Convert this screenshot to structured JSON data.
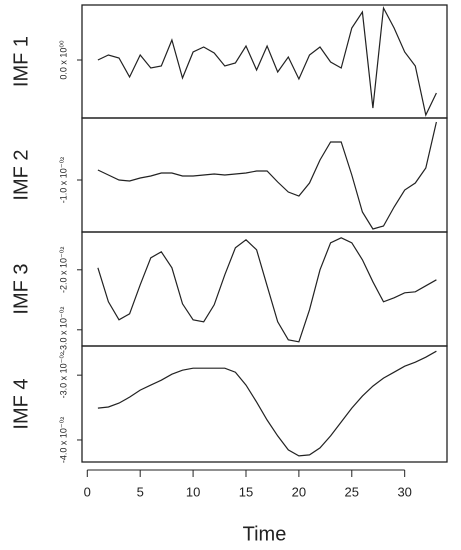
{
  "chart_data": [
    {
      "type": "line",
      "ylabel": "IMF 1",
      "color": "#222222",
      "x": [
        1,
        2,
        3,
        4,
        5,
        6,
        7,
        8,
        9,
        10,
        11,
        12,
        13,
        14,
        15,
        16,
        17,
        18,
        19,
        20,
        21,
        22,
        23,
        24,
        25,
        26,
        27,
        28,
        29,
        30,
        31,
        32,
        33
      ],
      "values": [
        0,
        0.05,
        0.02,
        -0.17,
        0.05,
        -0.08,
        -0.06,
        0.2,
        -0.18,
        0.08,
        0.13,
        0.07,
        -0.06,
        -0.03,
        0.14,
        -0.1,
        0.14,
        -0.12,
        0.03,
        -0.19,
        0.05,
        0.13,
        -0.02,
        -0.08,
        0.32,
        0.48,
        -0.48,
        0.52,
        0.32,
        0.08,
        -0.06,
        -0.55,
        -0.33
      ],
      "xlim": [
        -0.5,
        34
      ],
      "ylim": [
        -0.58,
        0.55
      ],
      "yticks": [
        {
          "value": 0,
          "label": "0.0 x 10⁰⁰"
        }
      ]
    },
    {
      "type": "line",
      "ylabel": "IMF 2",
      "color": "#222222",
      "x": [
        1,
        2,
        3,
        4,
        5,
        6,
        7,
        8,
        9,
        10,
        11,
        12,
        13,
        14,
        15,
        16,
        17,
        18,
        19,
        20,
        21,
        22,
        23,
        24,
        25,
        26,
        27,
        28,
        29,
        30,
        31,
        32,
        33
      ],
      "values": [
        -0.0075,
        -0.00875,
        -0.01,
        -0.01025,
        -0.0095,
        -0.009,
        -0.00825,
        -0.00825,
        -0.009,
        -0.009,
        -0.00875,
        -0.0085,
        -0.00875,
        -0.0085,
        -0.00825,
        -0.00775,
        -0.00775,
        -0.0105,
        -0.013,
        -0.014,
        -0.01075,
        -0.005,
        -0.0005,
        -0.0005,
        -0.00875,
        -0.018,
        -0.02225,
        -0.0215,
        -0.01675,
        -0.0125,
        -0.01075,
        -0.007,
        0.0045
      ],
      "xlim": [
        -0.5,
        34
      ],
      "ylim": [
        -0.023,
        0.0055
      ],
      "yticks": [
        {
          "value": -0.01,
          "label": "-1.0 x 10⁻⁰²"
        }
      ]
    },
    {
      "type": "line",
      "ylabel": "IMF 3",
      "color": "#222222",
      "x": [
        1,
        2,
        3,
        4,
        5,
        6,
        7,
        8,
        9,
        10,
        11,
        12,
        13,
        14,
        15,
        16,
        17,
        18,
        19,
        20,
        21,
        22,
        23,
        24,
        25,
        26,
        27,
        28,
        29,
        30,
        31,
        32,
        33
      ],
      "values": [
        -0.01967,
        -0.02533,
        -0.02833,
        -0.02733,
        -0.0225,
        -0.018,
        -0.017,
        -0.01967,
        -0.02567,
        -0.02833,
        -0.02867,
        -0.02583,
        -0.02083,
        -0.01633,
        -0.015,
        -0.01667,
        -0.02267,
        -0.02867,
        -0.03167,
        -0.032,
        -0.02667,
        -0.02,
        -0.0155,
        -0.01467,
        -0.0155,
        -0.01833,
        -0.022,
        -0.02533,
        -0.02467,
        -0.02383,
        -0.02367,
        -0.02267,
        -0.02167
      ],
      "xlim": [
        -0.5,
        34
      ],
      "ylim": [
        -0.0327,
        -0.0137
      ],
      "yticks": [
        {
          "value": -0.02,
          "label": "-2.0 x 10⁻⁰²"
        },
        {
          "value": -0.03,
          "label": "-3.0 x 10⁻⁰²"
        }
      ]
    },
    {
      "type": "line",
      "ylabel": "IMF 4",
      "color": "#222222",
      "xlabel": "Time",
      "x": [
        1,
        2,
        3,
        4,
        5,
        6,
        7,
        8,
        9,
        10,
        11,
        12,
        13,
        14,
        15,
        16,
        17,
        18,
        19,
        20,
        21,
        22,
        23,
        24,
        25,
        26,
        27,
        28,
        29,
        30,
        31,
        32,
        33
      ],
      "values": [
        -0.03508,
        -0.03492,
        -0.03431,
        -0.03338,
        -0.03231,
        -0.03154,
        -0.03077,
        -0.02985,
        -0.02923,
        -0.02892,
        -0.02892,
        -0.02892,
        -0.02892,
        -0.02954,
        -0.03154,
        -0.03415,
        -0.03692,
        -0.03938,
        -0.04154,
        -0.04246,
        -0.04231,
        -0.04123,
        -0.03938,
        -0.03723,
        -0.03508,
        -0.03323,
        -0.03169,
        -0.03046,
        -0.02954,
        -0.02862,
        -0.028,
        -0.02723,
        -0.02631
      ],
      "xlim": [
        -0.5,
        34
      ],
      "ylim": [
        -0.0434,
        -0.0255
      ],
      "yticks": [
        {
          "value": -0.03,
          "label": "-3.0 x 10⁻⁰²"
        },
        {
          "value": -0.04,
          "label": "-4.0 x 10⁻⁰²"
        }
      ],
      "xticks": [
        0,
        5,
        10,
        15,
        20,
        25,
        30
      ]
    }
  ]
}
